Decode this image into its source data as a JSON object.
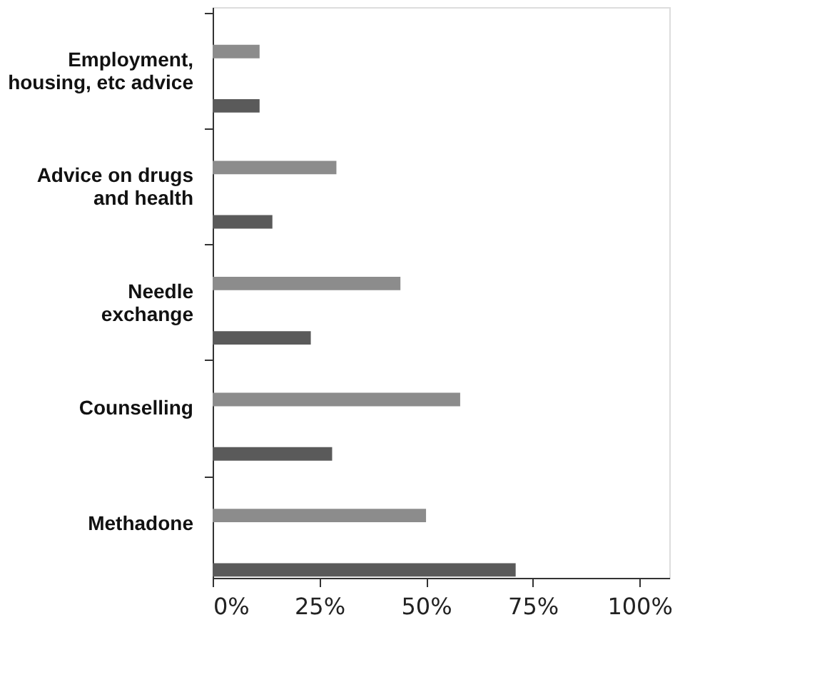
{
  "chart_data": {
    "type": "bar",
    "orientation": "horizontal",
    "categories": [
      "Employment,\nhousing, etc advice",
      "Advice on drugs\nand health",
      "Needle\nexchange",
      "Counselling",
      "Methadone"
    ],
    "series": [
      {
        "color": "#8c8c8c",
        "values": [
          11,
          29,
          44,
          58,
          50
        ]
      },
      {
        "color": "#5a5a5a",
        "values": [
          11,
          14,
          23,
          28,
          71
        ]
      }
    ],
    "xlim": [
      0,
      107
    ],
    "xticks": [
      {
        "value": 0,
        "label": "0%"
      },
      {
        "value": 25,
        "label": "25%"
      },
      {
        "value": 50,
        "label": "50%"
      },
      {
        "value": 75,
        "label": "75%"
      },
      {
        "value": 100,
        "label": "100%"
      }
    ],
    "grid": false,
    "legend": false
  }
}
